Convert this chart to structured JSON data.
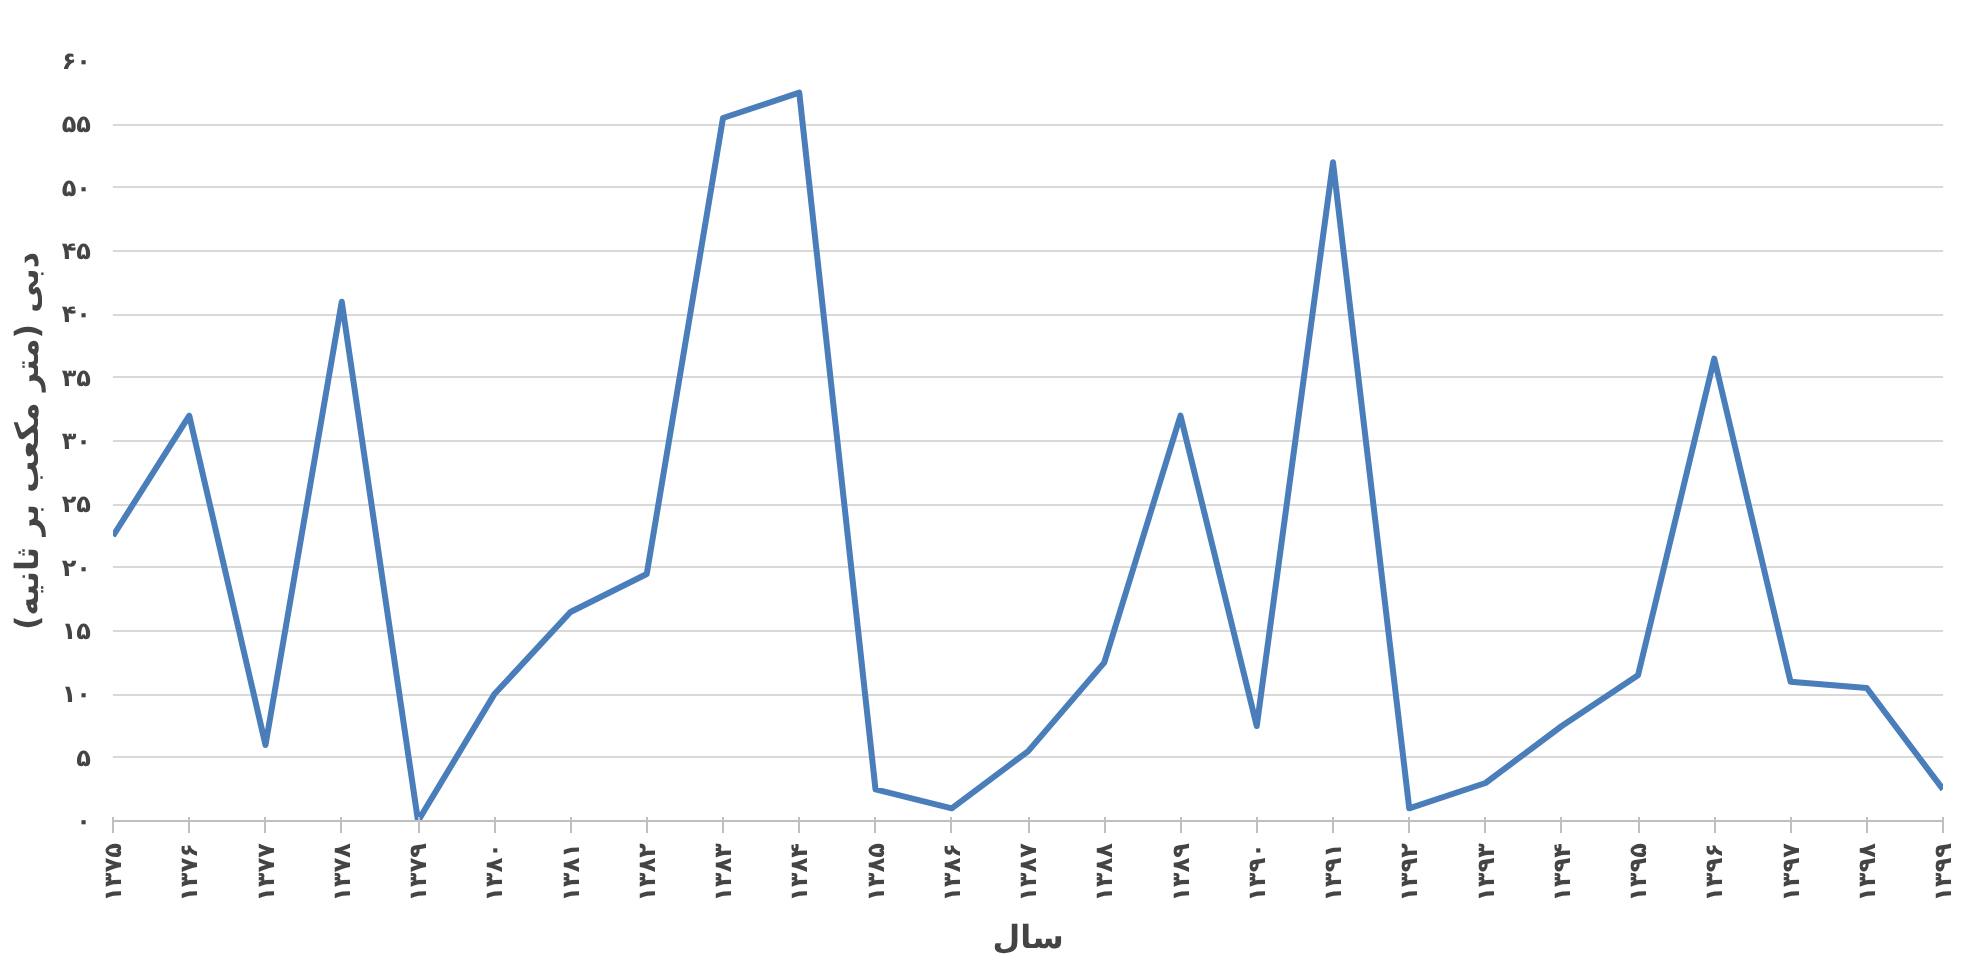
{
  "chart_data": {
    "type": "line",
    "xlabel": "سال",
    "ylabel": "دبی (متر مکعب بر ثانیه)",
    "categories": [
      "۱۳۷۵",
      "۱۳۷۶",
      "۱۳۷۷",
      "۱۳۷۸",
      "۱۳۷۹",
      "۱۳۸۰",
      "۱۳۸۱",
      "۱۳۸۲",
      "۱۳۸۳",
      "۱۳۸۴",
      "۱۳۸۵",
      "۱۳۸۶",
      "۱۳۸۷",
      "۱۳۸۸",
      "۱۳۸۹",
      "۱۳۹۰",
      "۱۳۹۱",
      "۱۳۹۲",
      "۱۳۹۳",
      "۱۳۹۴",
      "۱۳۹۵",
      "۱۳۹۶",
      "۱۳۹۷",
      "۱۳۹۸",
      "۱۳۹۹"
    ],
    "series": [
      {
        "color": "#4a7ebb",
        "values": [
          22.5,
          32,
          6,
          41,
          0,
          10,
          16.5,
          19.5,
          55.5,
          57.5,
          2.5,
          1,
          5.5,
          12.5,
          32,
          7.5,
          52,
          1,
          3,
          7.5,
          11.5,
          36.5,
          11,
          10.5,
          2.5
        ]
      }
    ],
    "ylim": [
      0,
      60
    ],
    "yticks": [
      {
        "value": 0,
        "label": "۰"
      },
      {
        "value": 5,
        "label": "۵"
      },
      {
        "value": 10,
        "label": "۱۰"
      },
      {
        "value": 15,
        "label": "۱۵"
      },
      {
        "value": 20,
        "label": "۲۰"
      },
      {
        "value": 25,
        "label": "۲۵"
      },
      {
        "value": 30,
        "label": "۳۰"
      },
      {
        "value": 35,
        "label": "۳۵"
      },
      {
        "value": 40,
        "label": "۴۰"
      },
      {
        "value": 45,
        "label": "۴۵"
      },
      {
        "value": 50,
        "label": "۵۰"
      },
      {
        "value": 55,
        "label": "۵۵"
      },
      {
        "value": 60,
        "label": "۶۰"
      }
    ],
    "grid": "y",
    "line_style": "solid"
  }
}
